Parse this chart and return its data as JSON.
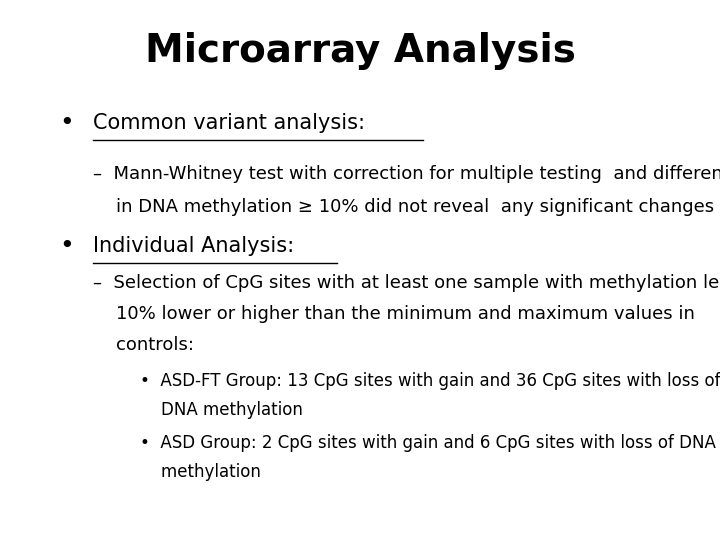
{
  "title": "Microarray Analysis",
  "title_fontsize": 28,
  "title_fontweight": "bold",
  "background_color": "#ffffff",
  "text_color": "#000000",
  "bullet1_label": "Common variant analysis:",
  "bullet1_fontsize": 15,
  "subbullet1_line1": "–  Mann-Whitney test with correction for multiple testing  and difference",
  "subbullet1_line2": "    in DNA methylation ≥ 10% did not reveal  any significant changes",
  "subbullet1_fontsize": 13,
  "bullet2_label": "Individual Analysis:",
  "bullet2_fontsize": 15,
  "subbullet2_line1": "–  Selection of CpG sites with at least one sample with methylation level",
  "subbullet2_line2": "    10% lower or higher than the minimum and maximum values in",
  "subbullet2_line3": "    controls:",
  "subbullet2_fontsize": 13,
  "subsubbullet1_line1": "•  ASD-FT Group: 13 CpG sites with gain and 36 CpG sites with loss of",
  "subsubbullet1_line2": "    DNA methylation",
  "subsubbullet2_line1": "•  ASD Group: 2 CpG sites with gain and 6 CpG sites with loss of DNA",
  "subsubbullet2_line2": "    methylation",
  "subsubbullet_fontsize": 12,
  "font_family": "DejaVu Sans"
}
